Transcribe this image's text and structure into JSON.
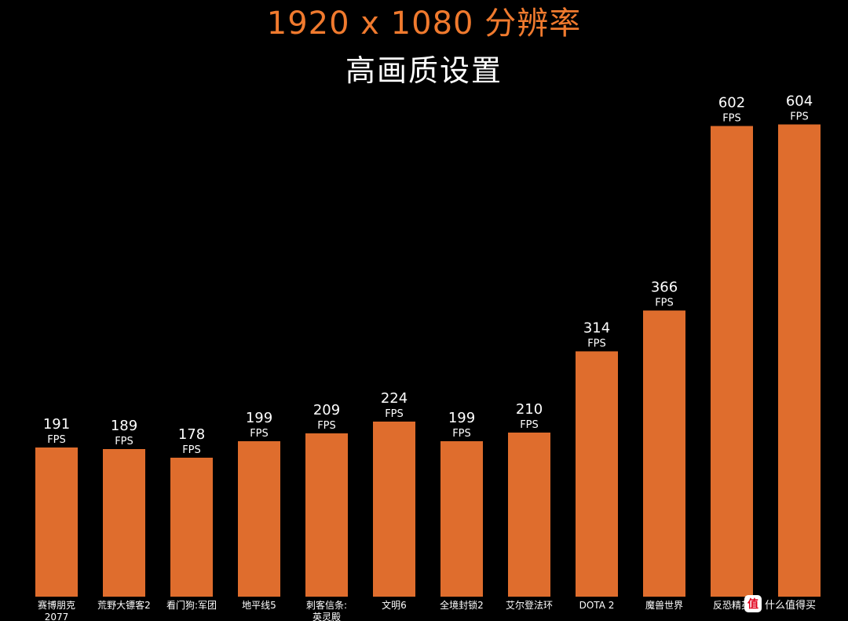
{
  "colors": {
    "background": "#000000",
    "title": "#f07a2e",
    "subtitle": "#ffffff",
    "bar": "#df6d2d",
    "text": "#ffffff"
  },
  "chart_data": {
    "type": "bar",
    "title": "1920 x 1080 分辨率",
    "subtitle": "高画质设置",
    "unit": "FPS",
    "grid": false,
    "legend": false,
    "ylim": [
      0,
      660
    ],
    "categories": [
      [
        "赛博朋克",
        "2077"
      ],
      [
        "荒野大镖客2"
      ],
      [
        "看门狗:军团"
      ],
      [
        "地平线5"
      ],
      [
        "刺客信条:",
        "英灵殿"
      ],
      [
        "文明6"
      ],
      [
        "全境封锁2"
      ],
      [
        "艾尔登法环"
      ],
      [
        "DOTA 2"
      ],
      [
        "魔兽世界"
      ],
      [
        "反恐精英"
      ],
      [
        ""
      ]
    ],
    "values": [
      191,
      189,
      178,
      199,
      209,
      224,
      199,
      210,
      314,
      366,
      602,
      604
    ],
    "value_labels": [
      "191",
      "189",
      "178",
      "199",
      "209",
      "224",
      "199",
      "210",
      "314",
      "366",
      "602",
      "604"
    ]
  },
  "watermark": {
    "badge": "值",
    "text": "什么值得买"
  }
}
